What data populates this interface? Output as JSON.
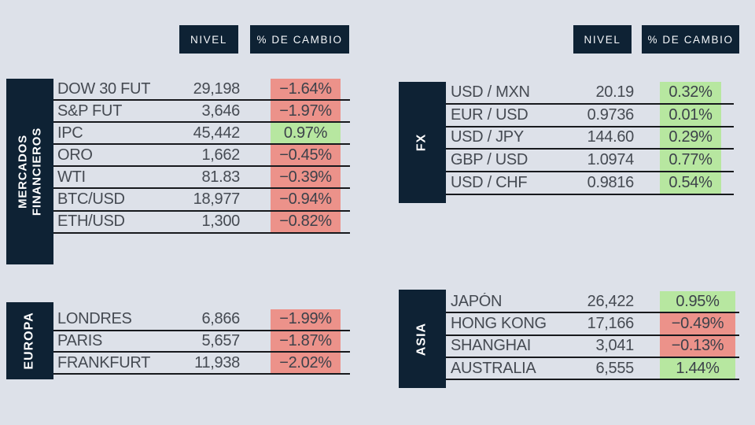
{
  "headers": {
    "nivel": "NIVEL",
    "cambio": "% DE CAMBIO"
  },
  "colors": {
    "background": "#dde1e9",
    "navy": "#0e2234",
    "positive_badge": "#b7e7a0",
    "negative_badge": "#ec928a",
    "row_text": "#454a52",
    "divider_line": "#17191d"
  },
  "chart_data": [
    {
      "type": "table",
      "section": "MERCADOS FINANCIEROS",
      "section_label_display": "MERCADOS\nFINANCIEROS",
      "columns": [
        "NIVEL",
        "% DE CAMBIO"
      ],
      "rows": [
        {
          "label": "DOW 30 FUT",
          "level": "29,198",
          "change": "−1.64%",
          "dir": "down"
        },
        {
          "label": "S&P FUT",
          "level": "3,646",
          "change": "−1.97%",
          "dir": "down"
        },
        {
          "label": "IPC",
          "level": "45,442",
          "change": "0.97%",
          "dir": "up"
        },
        {
          "label": "ORO",
          "level": "1,662",
          "change": "−0.45%",
          "dir": "down"
        },
        {
          "label": "WTI",
          "level": "81.83",
          "change": "−0.39%",
          "dir": "down"
        },
        {
          "label": "BTC/USD",
          "level": "18,977",
          "change": "−0.94%",
          "dir": "down"
        },
        {
          "label": "ETH/USD",
          "level": "1,300",
          "change": "−0.82%",
          "dir": "down"
        }
      ]
    },
    {
      "type": "table",
      "section": "EUROPA",
      "section_label_display": "EUROPA",
      "columns": [
        "NIVEL",
        "% DE CAMBIO"
      ],
      "rows": [
        {
          "label": "LONDRES",
          "level": "6,866",
          "change": "−1.99%",
          "dir": "down"
        },
        {
          "label": "PARIS",
          "level": "5,657",
          "change": "−1.87%",
          "dir": "down"
        },
        {
          "label": "FRANKFURT",
          "level": "11,938",
          "change": "−2.02%",
          "dir": "down"
        }
      ]
    },
    {
      "type": "table",
      "section": "FX",
      "section_label_display": "FX",
      "columns": [
        "NIVEL",
        "% DE CAMBIO"
      ],
      "rows": [
        {
          "label": "USD / MXN",
          "level": "20.19",
          "change": "0.32%",
          "dir": "up"
        },
        {
          "label": "EUR / USD",
          "level": "0.9736",
          "change": "0.01%",
          "dir": "up"
        },
        {
          "label": "USD / JPY",
          "level": "144.60",
          "change": "0.29%",
          "dir": "up"
        },
        {
          "label": "GBP / USD",
          "level": "1.0974",
          "change": "0.77%",
          "dir": "up"
        },
        {
          "label": "USD / CHF",
          "level": "0.9816",
          "change": "0.54%",
          "dir": "up"
        }
      ]
    },
    {
      "type": "table",
      "section": "ASIA",
      "section_label_display": "ASIA",
      "columns": [
        "NIVEL",
        "% DE CAMBIO"
      ],
      "rows": [
        {
          "label": "JAPÓN",
          "level": "26,422",
          "change": "0.95%",
          "dir": "up"
        },
        {
          "label": "HONG KONG",
          "level": "17,166",
          "change": "−0.49%",
          "dir": "down"
        },
        {
          "label": "SHANGHAI",
          "level": "3,041",
          "change": "−0.13%",
          "dir": "down"
        },
        {
          "label": "AUSTRALIA",
          "level": "6,555",
          "change": "1.44%",
          "dir": "up"
        }
      ]
    }
  ]
}
